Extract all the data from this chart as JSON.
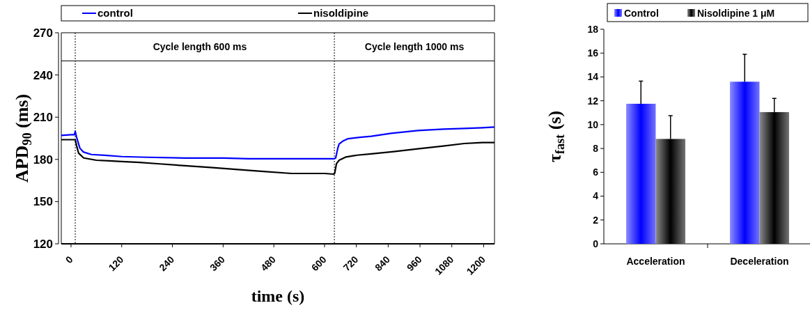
{
  "chart_data": [
    {
      "type": "line",
      "xlabel": "time (s)",
      "ylabel": "APD$_{90}$ (ms)",
      "xlim": [
        -23,
        600
      ],
      "ylim": [
        120,
        270
      ],
      "yticks": [
        120,
        150,
        180,
        210,
        240,
        270
      ],
      "xticks": [
        0,
        120,
        240,
        360,
        480,
        600
      ],
      "legend": "top",
      "grid": false,
      "line_style": "solid",
      "ref_lines": [
        {
          "axis": "x",
          "value": 10,
          "color": "#000000",
          "line_style": "dotted"
        },
        {
          "axis": "y",
          "value": 250,
          "color": "#000000",
          "line_style": "solid"
        }
      ],
      "annotations": [
        "Cycle length 600 ms"
      ],
      "series": [
        {
          "name": "control",
          "color": "#0000ff",
          "x": [
            -23,
            0,
            8,
            10,
            13,
            21,
            29,
            48,
            79,
            120,
            180,
            270,
            360,
            420,
            516,
            600
          ],
          "values": [
            197,
            197.5,
            197.5,
            200,
            196,
            188,
            185.3,
            183.5,
            182.9,
            182,
            181.5,
            181,
            181,
            180.5,
            180.5,
            180.5
          ]
        },
        {
          "name": "nisoldipine",
          "color": "#000000",
          "x": [
            -23,
            0,
            8,
            10,
            13,
            18,
            30,
            60,
            90,
            120,
            162,
            210,
            270,
            330,
            384,
            450,
            522,
            570,
            600
          ],
          "values": [
            194,
            194,
            194,
            194,
            190,
            184.4,
            181,
            179.4,
            179,
            178.5,
            177.9,
            176.8,
            175.5,
            174.3,
            173,
            171.5,
            170,
            170,
            170
          ]
        }
      ]
    },
    {
      "type": "line",
      "xlim": [
        600,
        1241
      ],
      "ylim": [
        120,
        270
      ],
      "xticks": [
        720,
        840,
        960,
        1080,
        1200
      ],
      "tick_labels": "x",
      "grid": false,
      "line_style": "solid",
      "ref_lines": [
        {
          "axis": "x",
          "value": 637,
          "color": "#000000",
          "line_style": "dotted"
        },
        {
          "axis": "y",
          "value": 250,
          "color": "#000000",
          "line_style": "solid"
        }
      ],
      "annotations": [
        "Cycle length 1000 ms"
      ],
      "series": [
        {
          "color": "#0000ff",
          "x": [
            600,
            637,
            642,
            650,
            655,
            669,
            689,
            733,
            776,
            851,
            952,
            1048,
            1127,
            1196,
            1241
          ],
          "values": [
            180.5,
            180.5,
            181,
            188,
            191,
            193,
            194.7,
            195.7,
            196.4,
            198.5,
            200.5,
            201.5,
            202,
            202.5,
            203
          ]
        },
        {
          "color": "#000000",
          "x": [
            600,
            635,
            638,
            645,
            655,
            681,
            723,
            776,
            861,
            952,
            1048,
            1127,
            1196,
            1241
          ],
          "values": [
            170,
            169.5,
            170,
            177,
            179.4,
            181.7,
            183,
            183.9,
            185.5,
            187.5,
            189.5,
            191.3,
            192,
            192
          ]
        }
      ]
    },
    {
      "type": "bar",
      "ylabel": "τ$_{fast}$ (s)",
      "categories": [
        "Acceleration",
        "Deceleration"
      ],
      "ylim": [
        0,
        18
      ],
      "yticks": [
        0,
        2,
        4,
        6,
        8,
        10,
        12,
        14,
        16,
        18
      ],
      "legend": "top",
      "grid": false,
      "series": [
        {
          "name": "Control",
          "color": "#0000ff",
          "values": [
            11.75,
            13.6
          ],
          "errors": [
            [
              11.75,
              13.65
            ],
            [
              13.6,
              15.9
            ]
          ]
        },
        {
          "name": "Nisoldipine 1 μM",
          "color": "#000000",
          "values": [
            8.8,
            11.05
          ],
          "errors": [
            [
              8.8,
              10.75
            ],
            [
              11.05,
              12.2
            ]
          ]
        }
      ]
    }
  ]
}
